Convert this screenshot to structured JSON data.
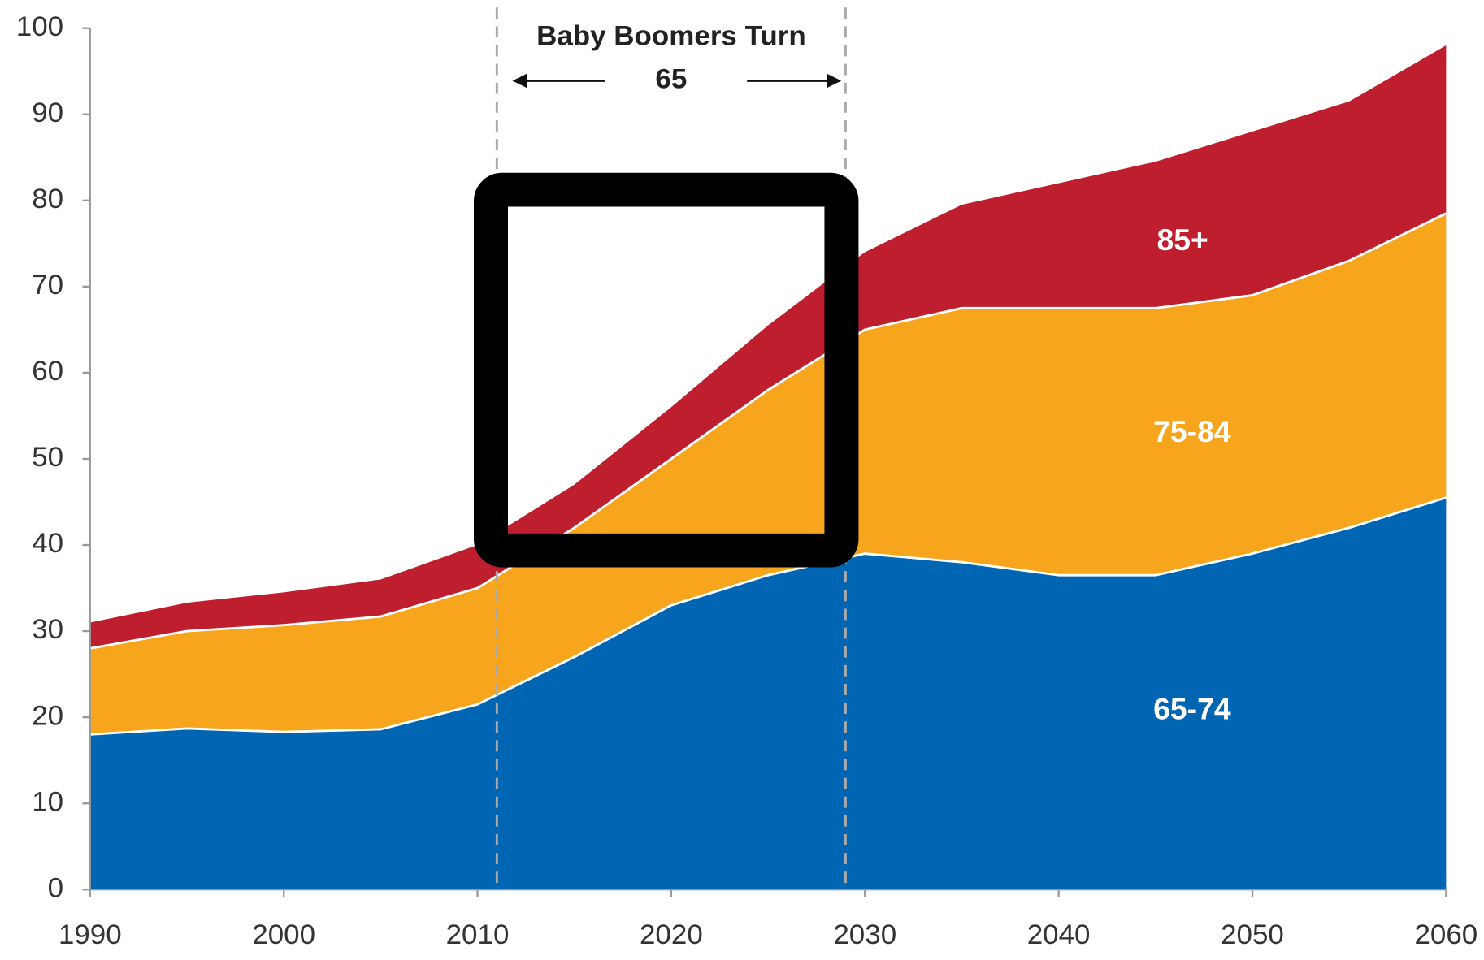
{
  "chart_data": {
    "type": "stacked_area",
    "x": [
      1990,
      1995,
      2000,
      2005,
      2010,
      2015,
      2020,
      2025,
      2030,
      2035,
      2040,
      2045,
      2050,
      2055,
      2060
    ],
    "series": [
      {
        "name": "65-74",
        "color": "#0066b3",
        "values": [
          18,
          18.7,
          18.3,
          18.6,
          21.5,
          27,
          33,
          36.5,
          39,
          38,
          36.5,
          36.5,
          39,
          42,
          45.5
        ]
      },
      {
        "name": "75-84",
        "color": "#f7a51c",
        "values": [
          10,
          11.3,
          12.4,
          13.1,
          13.5,
          15,
          17,
          21.5,
          26,
          29.5,
          31,
          31,
          30,
          31,
          33
        ]
      },
      {
        "name": "85+",
        "color": "#be1e2d",
        "values": [
          3,
          3.3,
          3.8,
          4.3,
          5,
          5,
          6,
          7.5,
          9,
          12,
          14.5,
          17,
          19,
          18.5,
          19.5
        ]
      }
    ],
    "xlim": [
      1990,
      2060
    ],
    "xticks": [
      1990,
      2000,
      2010,
      2020,
      2030,
      2040,
      2050,
      2060
    ],
    "ylim": [
      0,
      100
    ],
    "yticks": [
      0,
      10,
      20,
      30,
      40,
      50,
      60,
      70,
      80,
      90,
      100
    ],
    "annotation": {
      "title": "Baby Boomers Turn",
      "age": "65",
      "range": [
        2011,
        2029
      ]
    }
  }
}
